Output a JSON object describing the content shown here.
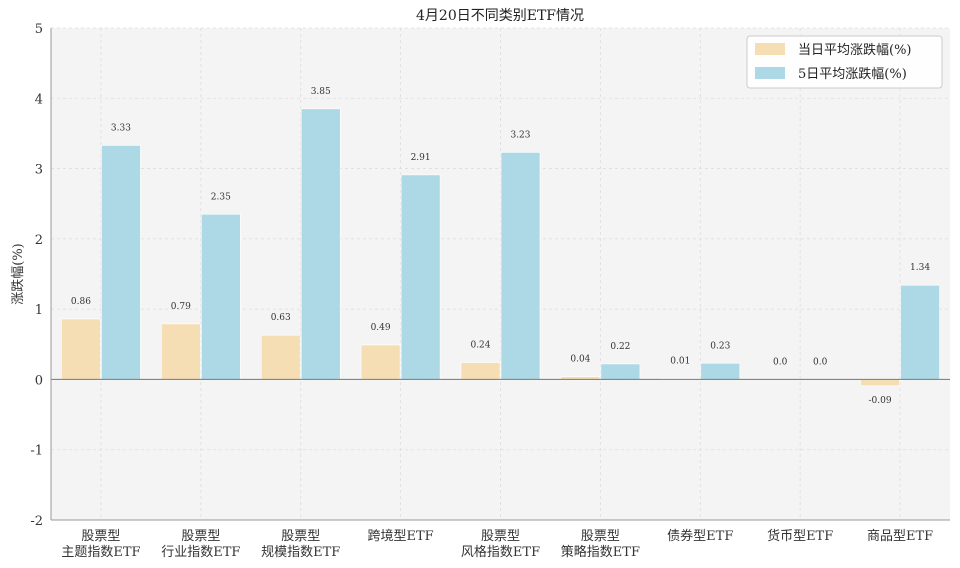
{
  "chart_data": {
    "type": "bar",
    "title": "4月20日不同类别ETF情况",
    "xlabel": "",
    "ylabel": "涨跌幅(%)",
    "ylim": [
      -2,
      5
    ],
    "yticks": [
      "-2",
      "-1",
      "0",
      "1",
      "2",
      "3",
      "4",
      "5"
    ],
    "grid": true,
    "legend_position": "top-right",
    "categories": [
      [
        "股票型",
        "主题指数ETF"
      ],
      [
        "股票型",
        "行业指数ETF"
      ],
      [
        "股票型",
        "规模指数ETF"
      ],
      [
        "跨境型ETF"
      ],
      [
        "股票型",
        "风格指数ETF"
      ],
      [
        "股票型",
        "策略指数ETF"
      ],
      [
        "债券型ETF"
      ],
      [
        "货币型ETF"
      ],
      [
        "商品型ETF"
      ]
    ],
    "series": [
      {
        "name": "当日平均涨跌幅(%)",
        "color": "#f5deb3",
        "values": [
          0.86,
          0.79,
          0.63,
          0.49,
          0.24,
          0.04,
          0.01,
          0.0,
          -0.09
        ],
        "labels": [
          "0.86",
          "0.79",
          "0.63",
          "0.49",
          "0.24",
          "0.04",
          "0.01",
          "0.0",
          "-0.09"
        ]
      },
      {
        "name": "5日平均涨跌幅(%)",
        "color": "#add8e6",
        "values": [
          3.33,
          2.35,
          3.85,
          2.91,
          3.23,
          0.22,
          0.23,
          0.0,
          1.34
        ],
        "labels": [
          "3.33",
          "2.35",
          "3.85",
          "2.91",
          "3.23",
          "0.22",
          "0.23",
          "0.0",
          "1.34"
        ]
      }
    ]
  }
}
